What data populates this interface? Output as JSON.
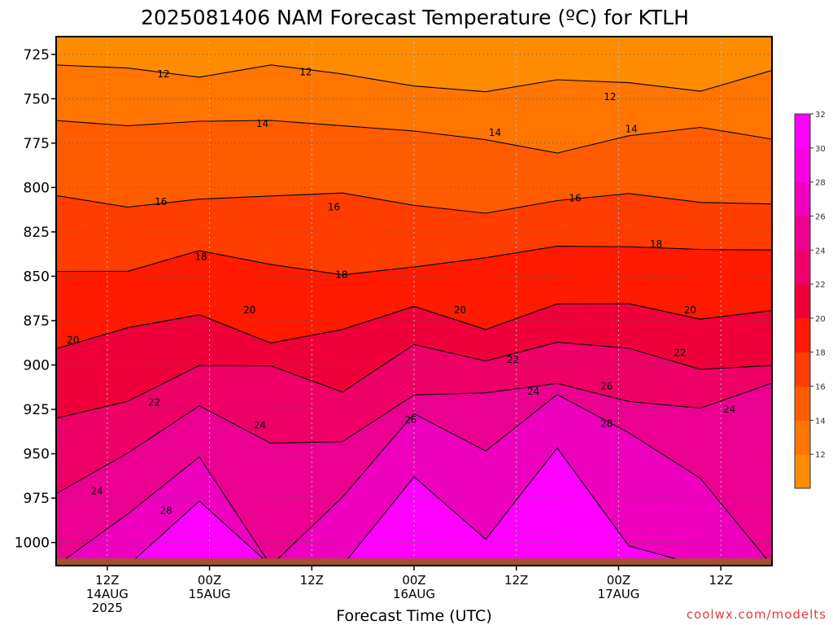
{
  "chart_data": {
    "type": "filled-contour",
    "title": "2025081406 NAM Forecast Temperature (ºC) for KTLH",
    "xlabel": "Forecast Time (UTC)",
    "ylabel": "",
    "credit": "coolwx.com/modelts",
    "y_axis": {
      "units": "hPa",
      "inverted": true,
      "ylim": [
        1013,
        715
      ],
      "ticks": [
        725,
        750,
        775,
        800,
        825,
        850,
        875,
        900,
        925,
        950,
        975,
        1000
      ]
    },
    "x_axis": {
      "units": "hours since 2025-08-14 06Z",
      "xlim": [
        0,
        84
      ],
      "ticks": [
        {
          "hour": 6,
          "line1": "12Z",
          "line2": "14AUG",
          "line3": "2025"
        },
        {
          "hour": 18,
          "line1": "00Z",
          "line2": "15AUG",
          "line3": ""
        },
        {
          "hour": 30,
          "line1": "12Z",
          "line2": "",
          "line3": ""
        },
        {
          "hour": 42,
          "line1": "00Z",
          "line2": "16AUG",
          "line3": ""
        },
        {
          "hour": 54,
          "line1": "12Z",
          "line2": "",
          "line3": ""
        },
        {
          "hour": 66,
          "line1": "00Z",
          "line2": "17AUG",
          "line3": ""
        },
        {
          "hour": 78,
          "line1": "12Z",
          "line2": "",
          "line3": ""
        }
      ]
    },
    "grid": true,
    "colorbar": {
      "position": "right",
      "levels": [
        12,
        14,
        16,
        18,
        20,
        22,
        24,
        26,
        28,
        30,
        32
      ],
      "colors": [
        "#ff8c00",
        "#ff7500",
        "#ff5c00",
        "#ff3d00",
        "#ff1a00",
        "#f0003a",
        "#ee0068",
        "#ec0092",
        "#ef00bf",
        "#f800e2",
        "#ff00ff"
      ]
    },
    "ground_color": "#a0522d",
    "contours": [
      {
        "level": 12,
        "pressure": [
          731,
          732,
          737,
          733,
          736,
          740,
          748,
          741,
          738,
          746,
          736
        ]
      },
      {
        "level": 14,
        "pressure": [
          760,
          768,
          763,
          760,
          766,
          769,
          773,
          780,
          770,
          768,
          773
        ]
      },
      {
        "level": 16,
        "pressure": [
          805,
          812,
          805,
          804,
          806,
          809,
          812,
          810,
          804,
          806,
          810
        ]
      },
      {
        "level": 18,
        "pressure": [
          845,
          846,
          838,
          843,
          848,
          845,
          840,
          834,
          832,
          834,
          838
        ]
      },
      {
        "level": 20,
        "pressure": [
          890,
          880,
          873,
          885,
          880,
          870,
          878,
          864,
          868,
          874,
          868
        ]
      },
      {
        "level": 22,
        "pressure": [
          932,
          918,
          900,
          902,
          915,
          888,
          897,
          888,
          892,
          900,
          900
        ]
      },
      {
        "level": 24,
        "pressure": [
          972,
          948,
          925,
          945,
          940,
          918,
          918,
          908,
          920,
          926,
          910
        ]
      },
      {
        "level": 26,
        "pressure": [
          1013,
          985,
          950,
          1013,
          975,
          928,
          948,
          915,
          940,
          965,
          1013
        ]
      },
      {
        "level": 28,
        "pressure": [
          1013,
          1013,
          975,
          1013,
          1013,
          960,
          1000,
          948,
          1000,
          1013,
          1013
        ]
      }
    ],
    "contour_labels": [
      {
        "text": "12",
        "hour": 12.6,
        "pressure": 736
      },
      {
        "text": "12",
        "hour": 29.3,
        "pressure": 735
      },
      {
        "text": "12",
        "hour": 65.0,
        "pressure": 749
      },
      {
        "text": "14",
        "hour": 24.2,
        "pressure": 764
      },
      {
        "text": "14",
        "hour": 51.5,
        "pressure": 769
      },
      {
        "text": "14",
        "hour": 67.5,
        "pressure": 767
      },
      {
        "text": "16",
        "hour": 12.3,
        "pressure": 808
      },
      {
        "text": "16",
        "hour": 32.6,
        "pressure": 811
      },
      {
        "text": "16",
        "hour": 60.9,
        "pressure": 806
      },
      {
        "text": "18",
        "hour": 17.0,
        "pressure": 839
      },
      {
        "text": "18",
        "hour": 33.5,
        "pressure": 849
      },
      {
        "text": "18",
        "hour": 70.4,
        "pressure": 832
      },
      {
        "text": "20",
        "hour": 2.0,
        "pressure": 886
      },
      {
        "text": "20",
        "hour": 22.7,
        "pressure": 869
      },
      {
        "text": "20",
        "hour": 47.4,
        "pressure": 869
      },
      {
        "text": "20",
        "hour": 74.4,
        "pressure": 869
      },
      {
        "text": "22",
        "hour": 11.5,
        "pressure": 921
      },
      {
        "text": "22",
        "hour": 53.6,
        "pressure": 897
      },
      {
        "text": "22",
        "hour": 73.2,
        "pressure": 893
      },
      {
        "text": "24",
        "hour": 4.8,
        "pressure": 971
      },
      {
        "text": "24",
        "hour": 23.9,
        "pressure": 934
      },
      {
        "text": "24",
        "hour": 56.0,
        "pressure": 915
      },
      {
        "text": "24",
        "hour": 79.0,
        "pressure": 925
      },
      {
        "text": "26",
        "hour": 41.6,
        "pressure": 931
      },
      {
        "text": "26",
        "hour": 64.6,
        "pressure": 912
      },
      {
        "text": "28",
        "hour": 12.9,
        "pressure": 982
      },
      {
        "text": "28",
        "hour": 64.6,
        "pressure": 933
      }
    ]
  }
}
